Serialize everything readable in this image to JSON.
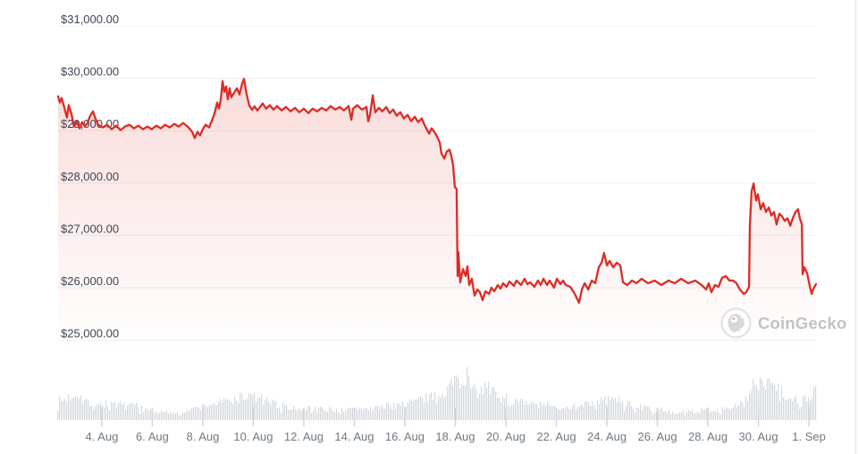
{
  "watermark": {
    "label": "CoinGecko"
  },
  "colors": {
    "line": "#db2d26",
    "fill_top": "rgba(219,45,38,0.20)",
    "fill_bottom": "rgba(219,45,38,0)",
    "grid": "#f2f2f2",
    "y_label": "#3e4653",
    "x_label": "#6f7983",
    "tick": "#c6d3e2",
    "volume_bar": "#d4d8de",
    "right_border": "#ececec",
    "watermark_text": "#c3c3c3",
    "watermark_logo": "#d8d8d8",
    "watermark_ring": "#e4e4e4"
  },
  "chart_data": {
    "type": "line",
    "grid": true,
    "legend": false,
    "y_axis": {
      "labels": [
        "$31,000.00",
        "$30,000.00",
        "$29,000.00",
        "$28,000.00",
        "$27,000.00",
        "$26,000.00",
        "$25,000.00"
      ],
      "values": [
        31000,
        30000,
        29000,
        28000,
        27000,
        26000,
        25000
      ]
    },
    "x_axis": {
      "labels": [
        "4. Aug",
        "6. Aug",
        "8. Aug",
        "10. Aug",
        "12. Aug",
        "14. Aug",
        "16. Aug",
        "18. Aug",
        "20. Aug",
        "22. Aug",
        "24. Aug",
        "26. Aug",
        "28. Aug",
        "30. Aug",
        "1. Sep"
      ],
      "day_values": [
        4,
        6,
        8,
        10,
        12,
        14,
        16,
        18,
        20,
        22,
        24,
        26,
        28,
        30,
        32
      ]
    },
    "x_range_days": [
      2.27,
      32.28
    ],
    "series": [
      {
        "name": "price",
        "points": [
          [
            2.27,
            29657
          ],
          [
            2.34,
            29538
          ],
          [
            2.41,
            29623
          ],
          [
            2.51,
            29453
          ],
          [
            2.62,
            29249
          ],
          [
            2.69,
            29487
          ],
          [
            2.8,
            29317
          ],
          [
            2.9,
            29079
          ],
          [
            3.01,
            29181
          ],
          [
            3.12,
            29045
          ],
          [
            3.22,
            29164
          ],
          [
            3.33,
            29079
          ],
          [
            3.43,
            29147
          ],
          [
            3.54,
            29283
          ],
          [
            3.65,
            29368
          ],
          [
            3.75,
            29232
          ],
          [
            3.86,
            29113
          ],
          [
            4.04,
            29062
          ],
          [
            4.21,
            29113
          ],
          [
            4.39,
            29028
          ],
          [
            4.57,
            29096
          ],
          [
            4.74,
            29011
          ],
          [
            4.92,
            29079
          ],
          [
            5.1,
            29113
          ],
          [
            5.27,
            29045
          ],
          [
            5.45,
            29096
          ],
          [
            5.63,
            29028
          ],
          [
            5.81,
            29079
          ],
          [
            5.98,
            29028
          ],
          [
            6.16,
            29096
          ],
          [
            6.34,
            29045
          ],
          [
            6.51,
            29113
          ],
          [
            6.69,
            29062
          ],
          [
            6.87,
            29130
          ],
          [
            7.04,
            29079
          ],
          [
            7.22,
            29147
          ],
          [
            7.4,
            29079
          ],
          [
            7.58,
            28977
          ],
          [
            7.68,
            28858
          ],
          [
            7.79,
            28977
          ],
          [
            7.89,
            28909
          ],
          [
            8.0,
            29028
          ],
          [
            8.11,
            29113
          ],
          [
            8.25,
            29062
          ],
          [
            8.35,
            29181
          ],
          [
            8.46,
            29317
          ],
          [
            8.57,
            29538
          ],
          [
            8.64,
            29419
          ],
          [
            8.71,
            29589
          ],
          [
            8.78,
            29946
          ],
          [
            8.85,
            29742
          ],
          [
            8.92,
            29844
          ],
          [
            8.99,
            29599
          ],
          [
            9.06,
            29810
          ],
          [
            9.13,
            29640
          ],
          [
            9.24,
            29725
          ],
          [
            9.35,
            29810
          ],
          [
            9.45,
            29691
          ],
          [
            9.56,
            29903
          ],
          [
            9.63,
            29990
          ],
          [
            9.73,
            29708
          ],
          [
            9.84,
            29480
          ],
          [
            9.95,
            29400
          ],
          [
            10.05,
            29465
          ],
          [
            10.16,
            29385
          ],
          [
            10.27,
            29453
          ],
          [
            10.37,
            29521
          ],
          [
            10.51,
            29419
          ],
          [
            10.65,
            29487
          ],
          [
            10.8,
            29402
          ],
          [
            10.94,
            29470
          ],
          [
            11.12,
            29385
          ],
          [
            11.29,
            29453
          ],
          [
            11.47,
            29368
          ],
          [
            11.65,
            29436
          ],
          [
            11.82,
            29351
          ],
          [
            12.0,
            29419
          ],
          [
            12.18,
            29334
          ],
          [
            12.35,
            29419
          ],
          [
            12.53,
            29368
          ],
          [
            12.71,
            29436
          ],
          [
            12.89,
            29385
          ],
          [
            13.06,
            29470
          ],
          [
            13.24,
            29402
          ],
          [
            13.42,
            29453
          ],
          [
            13.59,
            29385
          ],
          [
            13.77,
            29470
          ],
          [
            13.88,
            29210
          ],
          [
            13.95,
            29419
          ],
          [
            14.12,
            29487
          ],
          [
            14.3,
            29402
          ],
          [
            14.48,
            29453
          ],
          [
            14.55,
            29180
          ],
          [
            14.62,
            29300
          ],
          [
            14.73,
            29674
          ],
          [
            14.83,
            29351
          ],
          [
            14.97,
            29436
          ],
          [
            15.11,
            29368
          ],
          [
            15.26,
            29453
          ],
          [
            15.4,
            29334
          ],
          [
            15.54,
            29402
          ],
          [
            15.68,
            29283
          ],
          [
            15.82,
            29351
          ],
          [
            15.96,
            29232
          ],
          [
            16.11,
            29300
          ],
          [
            16.25,
            29181
          ],
          [
            16.39,
            29266
          ],
          [
            16.53,
            29164
          ],
          [
            16.67,
            29232
          ],
          [
            16.81,
            29079
          ],
          [
            16.96,
            28943
          ],
          [
            17.06,
            29045
          ],
          [
            17.17,
            28977
          ],
          [
            17.27,
            28892
          ],
          [
            17.38,
            28773
          ],
          [
            17.45,
            28569
          ],
          [
            17.56,
            28467
          ],
          [
            17.66,
            28603
          ],
          [
            17.77,
            28637
          ],
          [
            17.84,
            28518
          ],
          [
            17.91,
            28348
          ],
          [
            17.98,
            27923
          ],
          [
            18.05,
            27889
          ],
          [
            18.09,
            26223
          ],
          [
            18.12,
            26682
          ],
          [
            18.19,
            26104
          ],
          [
            18.3,
            26359
          ],
          [
            18.41,
            26223
          ],
          [
            18.48,
            26410
          ],
          [
            18.55,
            26053
          ],
          [
            18.65,
            26172
          ],
          [
            18.76,
            25849
          ],
          [
            18.87,
            25968
          ],
          [
            18.97,
            25917
          ],
          [
            19.08,
            25764
          ],
          [
            19.19,
            25934
          ],
          [
            19.33,
            25883
          ],
          [
            19.43,
            26002
          ],
          [
            19.54,
            25934
          ],
          [
            19.68,
            26053
          ],
          [
            19.79,
            25985
          ],
          [
            19.89,
            26087
          ],
          [
            20.03,
            26019
          ],
          [
            20.14,
            26121
          ],
          [
            20.32,
            26036
          ],
          [
            20.42,
            26138
          ],
          [
            20.6,
            26053
          ],
          [
            20.74,
            26172
          ],
          [
            20.85,
            26070
          ],
          [
            20.96,
            26104
          ],
          [
            21.13,
            26019
          ],
          [
            21.27,
            26138
          ],
          [
            21.38,
            26053
          ],
          [
            21.49,
            26172
          ],
          [
            21.63,
            26053
          ],
          [
            21.73,
            26138
          ],
          [
            21.91,
            26002
          ],
          [
            22.02,
            26172
          ],
          [
            22.16,
            26070
          ],
          [
            22.27,
            26138
          ],
          [
            22.37,
            26053
          ],
          [
            22.55,
            26019
          ],
          [
            22.73,
            25883
          ],
          [
            22.9,
            25713
          ],
          [
            23.01,
            25968
          ],
          [
            23.12,
            26087
          ],
          [
            23.26,
            25968
          ],
          [
            23.4,
            26138
          ],
          [
            23.54,
            26087
          ],
          [
            23.68,
            26393
          ],
          [
            23.79,
            26478
          ],
          [
            23.89,
            26665
          ],
          [
            24.0,
            26427
          ],
          [
            24.11,
            26512
          ],
          [
            24.25,
            26393
          ],
          [
            24.39,
            26478
          ],
          [
            24.53,
            26427
          ],
          [
            24.64,
            26104
          ],
          [
            24.81,
            26053
          ],
          [
            24.99,
            26138
          ],
          [
            25.17,
            26087
          ],
          [
            25.38,
            26172
          ],
          [
            25.63,
            26087
          ],
          [
            25.88,
            26138
          ],
          [
            26.16,
            26053
          ],
          [
            26.44,
            26138
          ],
          [
            26.69,
            26087
          ],
          [
            26.94,
            26172
          ],
          [
            27.22,
            26087
          ],
          [
            27.5,
            26138
          ],
          [
            27.75,
            26053
          ],
          [
            27.93,
            25968
          ],
          [
            28.03,
            26087
          ],
          [
            28.14,
            25917
          ],
          [
            28.28,
            26053
          ],
          [
            28.42,
            26019
          ],
          [
            28.56,
            26189
          ],
          [
            28.71,
            26223
          ],
          [
            28.85,
            26138
          ],
          [
            29.0,
            26138
          ],
          [
            29.13,
            26087
          ],
          [
            29.27,
            25968
          ],
          [
            29.42,
            25883
          ],
          [
            29.52,
            25917
          ],
          [
            29.63,
            26019
          ],
          [
            29.66,
            27185
          ],
          [
            29.73,
            27838
          ],
          [
            29.81,
            27991
          ],
          [
            29.91,
            27668
          ],
          [
            29.98,
            27787
          ],
          [
            30.09,
            27498
          ],
          [
            30.19,
            27617
          ],
          [
            30.3,
            27447
          ],
          [
            30.41,
            27532
          ],
          [
            30.51,
            27379
          ],
          [
            30.62,
            27447
          ],
          [
            30.72,
            27209
          ],
          [
            30.83,
            27413
          ],
          [
            30.94,
            27362
          ],
          [
            31.04,
            27277
          ],
          [
            31.15,
            27328
          ],
          [
            31.26,
            27185
          ],
          [
            31.36,
            27328
          ],
          [
            31.47,
            27447
          ],
          [
            31.57,
            27498
          ],
          [
            31.64,
            27328
          ],
          [
            31.72,
            27209
          ],
          [
            31.75,
            26257
          ],
          [
            31.82,
            26393
          ],
          [
            31.93,
            26274
          ],
          [
            32.04,
            26019
          ],
          [
            32.11,
            25883
          ],
          [
            32.18,
            25985
          ],
          [
            32.28,
            26070
          ]
        ]
      }
    ],
    "volume_profile": [
      [
        2.27,
        26
      ],
      [
        2.6,
        30
      ],
      [
        3.0,
        40
      ],
      [
        3.3,
        28
      ],
      [
        3.5,
        26
      ],
      [
        4.0,
        22
      ],
      [
        4.4,
        24
      ],
      [
        4.9,
        20
      ],
      [
        5.3,
        23
      ],
      [
        5.6,
        16
      ],
      [
        6.0,
        13
      ],
      [
        6.3,
        11
      ],
      [
        6.7,
        10
      ],
      [
        7.0,
        12
      ],
      [
        7.4,
        14
      ],
      [
        7.9,
        18
      ],
      [
        8.5,
        24
      ],
      [
        9.0,
        27
      ],
      [
        9.5,
        32
      ],
      [
        10.0,
        34
      ],
      [
        10.4,
        28
      ],
      [
        10.9,
        22
      ],
      [
        11.5,
        18
      ],
      [
        12.0,
        16
      ],
      [
        12.5,
        17
      ],
      [
        13.1,
        15
      ],
      [
        13.6,
        14
      ],
      [
        14.1,
        16
      ],
      [
        14.7,
        18
      ],
      [
        15.2,
        19
      ],
      [
        15.7,
        22
      ],
      [
        16.25,
        26
      ],
      [
        16.8,
        30
      ],
      [
        17.3,
        38
      ],
      [
        17.7,
        48
      ],
      [
        18.0,
        56
      ],
      [
        18.4,
        62
      ],
      [
        18.7,
        55
      ],
      [
        19.1,
        48
      ],
      [
        19.5,
        38
      ],
      [
        20.0,
        30
      ],
      [
        20.5,
        25
      ],
      [
        21.0,
        22
      ],
      [
        21.6,
        20
      ],
      [
        22.1,
        18
      ],
      [
        22.6,
        20
      ],
      [
        23.1,
        24
      ],
      [
        23.7,
        28
      ],
      [
        24.2,
        30
      ],
      [
        24.7,
        24
      ],
      [
        25.3,
        18
      ],
      [
        25.8,
        15
      ],
      [
        26.3,
        13
      ],
      [
        26.9,
        11
      ],
      [
        27.4,
        12
      ],
      [
        27.9,
        14
      ],
      [
        28.5,
        16
      ],
      [
        28.9,
        18
      ],
      [
        29.3,
        22
      ],
      [
        29.55,
        30
      ],
      [
        29.7,
        45
      ],
      [
        30.05,
        55
      ],
      [
        30.3,
        58
      ],
      [
        30.7,
        52
      ],
      [
        31.05,
        35
      ],
      [
        31.4,
        28
      ],
      [
        31.75,
        32
      ],
      [
        32.05,
        38
      ],
      [
        32.28,
        42
      ]
    ]
  }
}
